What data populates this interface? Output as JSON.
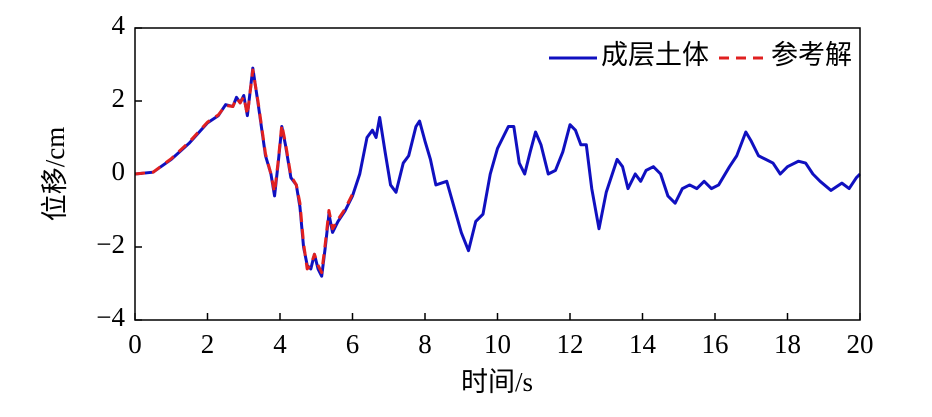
{
  "chart_data": {
    "type": "line",
    "xlabel": "时间/s",
    "ylabel": "位移/cm",
    "x": [
      0,
      0.5,
      1,
      1.5,
      2,
      2.3,
      2.5,
      2.7,
      2.8,
      2.9,
      3.0,
      3.1,
      3.25,
      3.4,
      3.6,
      3.75,
      3.85,
      3.95,
      4.05,
      4.15,
      4.3,
      4.45,
      4.55,
      4.65,
      4.75,
      4.85,
      4.95,
      5.05,
      5.15,
      5.25,
      5.35,
      5.45,
      5.6,
      5.8,
      6.0,
      6.2,
      6.4,
      6.55,
      6.65,
      6.75,
      6.9,
      7.05,
      7.2,
      7.4,
      7.55,
      7.75,
      7.85,
      8.0,
      8.15,
      8.3,
      8.6,
      9.0,
      9.2,
      9.4,
      9.6,
      9.8,
      10.0,
      10.3,
      10.45,
      10.6,
      10.75,
      10.9,
      11.05,
      11.2,
      11.4,
      11.6,
      11.8,
      12.0,
      12.15,
      12.3,
      12.45,
      12.6,
      12.8,
      13.0,
      13.3,
      13.45,
      13.6,
      13.8,
      13.95,
      14.1,
      14.3,
      14.5,
      14.7,
      14.9,
      15.1,
      15.3,
      15.5,
      15.7,
      15.9,
      16.1,
      16.4,
      16.6,
      16.85,
      17.0,
      17.2,
      17.4,
      17.6,
      17.8,
      18.0,
      18.3,
      18.5,
      18.7,
      18.9,
      19.2,
      19.5,
      19.7,
      19.9,
      20
    ],
    "series": [
      {
        "name": "成层土体",
        "color": "#1010c0",
        "dash": false,
        "values": [
          0,
          0.05,
          0.4,
          0.85,
          1.4,
          1.6,
          1.9,
          1.85,
          2.1,
          1.95,
          2.15,
          1.6,
          2.9,
          1.9,
          0.5,
          0.0,
          -0.6,
          0.3,
          1.3,
          0.8,
          -0.1,
          -0.3,
          -0.9,
          -2.0,
          -2.5,
          -2.6,
          -2.2,
          -2.6,
          -2.8,
          -2.0,
          -1.1,
          -1.6,
          -1.3,
          -1.0,
          -0.6,
          0.0,
          1.0,
          1.2,
          1.0,
          1.55,
          0.6,
          -0.3,
          -0.5,
          0.3,
          0.5,
          1.3,
          1.45,
          0.9,
          0.4,
          -0.3,
          -0.2,
          -1.6,
          -2.1,
          -1.3,
          -1.1,
          0.0,
          0.7,
          1.3,
          1.3,
          0.3,
          0.0,
          0.6,
          1.15,
          0.8,
          0.0,
          0.1,
          0.6,
          1.35,
          1.2,
          0.8,
          0.8,
          -0.4,
          -1.5,
          -0.5,
          0.4,
          0.2,
          -0.4,
          0.0,
          -0.2,
          0.1,
          0.2,
          0.0,
          -0.6,
          -0.8,
          -0.4,
          -0.3,
          -0.4,
          -0.2,
          -0.4,
          -0.3,
          0.2,
          0.5,
          1.15,
          0.9,
          0.5,
          0.4,
          0.3,
          0.0,
          0.2,
          0.35,
          0.3,
          0.0,
          -0.2,
          -0.45,
          -0.25,
          -0.4,
          -0.1,
          0.0
        ]
      },
      {
        "name": "参考解",
        "color": "#e02020",
        "dash": true,
        "values": [
          0,
          0.05,
          0.42,
          0.88,
          1.42,
          1.62,
          1.88,
          1.85,
          2.08,
          1.95,
          2.12,
          1.62,
          2.85,
          1.95,
          0.55,
          0.0,
          -0.5,
          0.35,
          1.35,
          0.85,
          -0.05,
          -0.3,
          -0.8,
          -1.9,
          -2.6,
          -2.5,
          -2.2,
          -2.5,
          -2.7,
          -1.9,
          -1.0,
          -1.5,
          -1.25,
          -0.95,
          -0.55,
          null,
          null,
          null,
          null,
          null,
          null,
          null,
          null,
          null,
          null,
          null,
          null,
          null,
          null,
          null,
          null,
          null,
          null,
          null,
          null,
          null,
          null,
          null,
          null,
          null,
          null,
          null,
          null,
          null,
          null,
          null,
          null,
          null,
          null,
          null,
          null,
          null,
          null,
          null,
          null,
          null,
          null,
          null,
          null,
          null,
          null,
          null,
          null,
          null,
          null,
          null,
          null,
          null,
          null,
          null,
          null,
          null,
          null,
          null,
          null,
          null,
          null,
          null,
          null,
          null,
          null,
          null,
          null,
          null,
          null,
          null,
          null,
          null
        ]
      }
    ],
    "xlim": [
      0,
      20
    ],
    "xticks": [
      0,
      2,
      4,
      6,
      8,
      10,
      12,
      14,
      16,
      18,
      20
    ],
    "ylim": [
      -4,
      4
    ],
    "yticks": [
      {
        "value": -4,
        "label": "−4"
      },
      {
        "value": -2,
        "label": "−2"
      },
      0,
      2,
      4
    ],
    "legend": "upper right"
  }
}
